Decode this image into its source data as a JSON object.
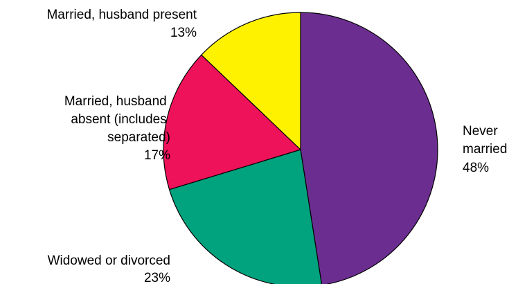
{
  "chart_data": {
    "type": "pie",
    "start_angle_deg": 0,
    "direction": "clockwise",
    "slices": [
      {
        "label_lines": [
          "Never",
          "married"
        ],
        "value": 48,
        "value_label": "48%",
        "color": "#6c2d91"
      },
      {
        "label_lines": [
          "Widowed or divorced"
        ],
        "value": 23,
        "value_label": "23%",
        "color": "#00a37e"
      },
      {
        "label_lines": [
          "Married, husband",
          "absent (includes",
          "separated)"
        ],
        "value": 17,
        "value_label": "17%",
        "color": "#ee125a"
      },
      {
        "label_lines": [
          "Married, husband present"
        ],
        "value": 13,
        "value_label": "13%",
        "color": "#fff200"
      }
    ]
  }
}
